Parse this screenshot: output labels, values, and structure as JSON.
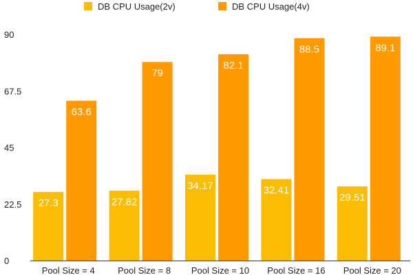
{
  "chart_data": {
    "type": "bar",
    "title": "",
    "xlabel": "",
    "ylabel": "",
    "categories": [
      "Pool Size = 4",
      "Pool Size = 8",
      "Pool Size = 10",
      "Pool Size = 16",
      "Pool Size = 20"
    ],
    "series": [
      {
        "name": "DB CPU Usage(2v)",
        "color": "#fbbc04",
        "values": [
          27.3,
          27.82,
          34.17,
          32.41,
          29.51
        ],
        "labels": [
          "27.3",
          "27.82",
          "34.17",
          "32.41",
          "29.51"
        ]
      },
      {
        "name": "DB CPU Usage(4v)",
        "color": "#ff9900",
        "values": [
          63.6,
          79,
          82.1,
          88.5,
          89.1
        ],
        "labels": [
          "63.6",
          "79",
          "82.1",
          "88.5",
          "89.1"
        ]
      }
    ],
    "ylim": [
      0,
      90
    ],
    "yticks": [
      0,
      22.5,
      45,
      67.5,
      90
    ],
    "ytick_labels": [
      "0",
      "22.5",
      "45",
      "67.5",
      "90"
    ],
    "grid": false,
    "legend_position": "top"
  }
}
